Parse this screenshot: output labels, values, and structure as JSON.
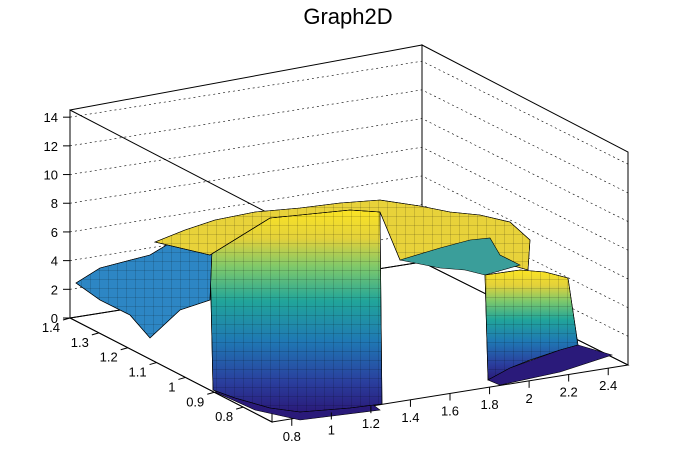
{
  "chart_data": {
    "type": "surface3d",
    "title": "Graph2D",
    "xlabel": "",
    "ylabel": "",
    "zlabel": "",
    "xlim": [
      0.7,
      2.5
    ],
    "ylim": [
      0.7,
      1.4
    ],
    "zlim": [
      0,
      14.5
    ],
    "x_ticks": [
      "0.8",
      "1",
      "1.2",
      "1.4",
      "1.6",
      "1.8",
      "2",
      "2.2",
      "2.4"
    ],
    "y_ticks": [
      "0.8",
      "0.9",
      "1",
      "1.1",
      "1.2",
      "1.3",
      "1.4"
    ],
    "z_ticks": [
      "0",
      "2",
      "4",
      "6",
      "8",
      "10",
      "12",
      "14"
    ],
    "grid": true,
    "colormap": "viridis",
    "note_shape": "ring-shaped plateau",
    "surface_regions": [
      {
        "x_range": [
          0.7,
          1.55
        ],
        "y_range": [
          0.7,
          1.4
        ],
        "z_peak": 7.5
      },
      {
        "x_range": [
          1.55,
          2.1
        ],
        "y_range": [
          1.0,
          1.4
        ],
        "z_peak": 7.0
      },
      {
        "x_range": [
          1.85,
          2.3
        ],
        "y_range": [
          0.7,
          1.15
        ],
        "z_peak": 4.0
      }
    ],
    "floor_level": 0
  }
}
